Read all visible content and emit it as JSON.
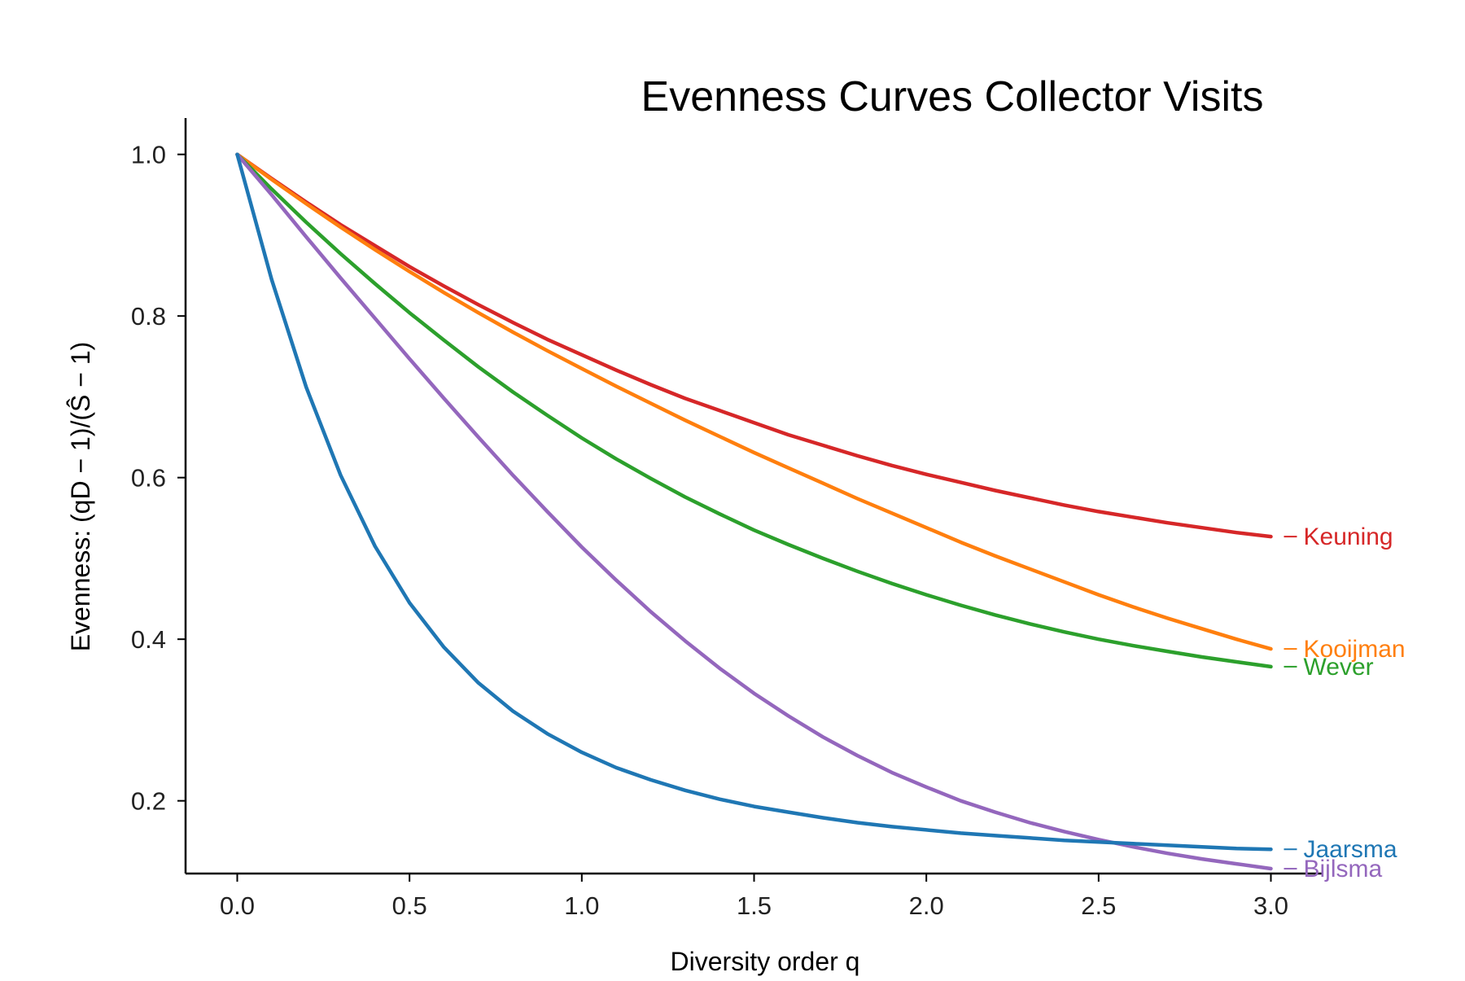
{
  "chart_data": {
    "type": "line",
    "title": "Evenness Curves Collector Visits",
    "xlabel": "Diversity order q",
    "ylabel": "Evenness: (qD − 1)/(Ŝ − 1)",
    "xlim": [
      -0.15,
      3.15
    ],
    "ylim": [
      0.11,
      1.045
    ],
    "x_ticks": [
      0.0,
      0.5,
      1.0,
      1.5,
      2.0,
      2.5,
      3.0
    ],
    "x_tick_labels": [
      "0.0",
      "0.5",
      "1.0",
      "1.5",
      "2.0",
      "2.5",
      "3.0"
    ],
    "y_ticks": [
      0.2,
      0.4,
      0.6,
      0.8,
      1.0
    ],
    "y_tick_labels": [
      "0.2",
      "0.4",
      "0.6",
      "0.8",
      "1.0"
    ],
    "grid": false,
    "legend": "inline labels at right end of each line",
    "x": [
      0.0,
      0.1,
      0.2,
      0.3,
      0.4,
      0.5,
      0.6,
      0.7,
      0.8,
      0.9,
      1.0,
      1.1,
      1.2,
      1.3,
      1.4,
      1.5,
      1.6,
      1.7,
      1.8,
      1.9,
      2.0,
      2.1,
      2.2,
      2.3,
      2.4,
      2.5,
      2.6,
      2.7,
      2.8,
      2.9,
      3.0
    ],
    "series": [
      {
        "name": "Keuning",
        "color": "#d62728",
        "values": [
          1.0,
          0.97,
          0.941,
          0.913,
          0.887,
          0.861,
          0.837,
          0.814,
          0.792,
          0.771,
          0.752,
          0.733,
          0.715,
          0.698,
          0.683,
          0.668,
          0.653,
          0.64,
          0.627,
          0.615,
          0.604,
          0.594,
          0.584,
          0.575,
          0.566,
          0.558,
          0.551,
          0.544,
          0.538,
          0.532,
          0.527
        ]
      },
      {
        "name": "Kooijman",
        "color": "#ff7f0e",
        "values": [
          1.0,
          0.969,
          0.939,
          0.91,
          0.882,
          0.855,
          0.829,
          0.804,
          0.78,
          0.757,
          0.735,
          0.713,
          0.692,
          0.671,
          0.651,
          0.631,
          0.612,
          0.593,
          0.574,
          0.556,
          0.538,
          0.52,
          0.503,
          0.487,
          0.471,
          0.455,
          0.44,
          0.426,
          0.413,
          0.4,
          0.388
        ]
      },
      {
        "name": "Wever",
        "color": "#2ca02c",
        "values": [
          1.0,
          0.957,
          0.916,
          0.877,
          0.84,
          0.804,
          0.77,
          0.737,
          0.706,
          0.677,
          0.649,
          0.623,
          0.599,
          0.576,
          0.555,
          0.535,
          0.517,
          0.5,
          0.484,
          0.469,
          0.455,
          0.442,
          0.43,
          0.419,
          0.409,
          0.4,
          0.392,
          0.385,
          0.378,
          0.372,
          0.366
        ]
      },
      {
        "name": "Bijlsma",
        "color": "#9467bd",
        "values": [
          1.0,
          0.95,
          0.898,
          0.847,
          0.797,
          0.747,
          0.698,
          0.65,
          0.603,
          0.558,
          0.514,
          0.473,
          0.434,
          0.398,
          0.364,
          0.333,
          0.305,
          0.279,
          0.256,
          0.235,
          0.217,
          0.2,
          0.186,
          0.173,
          0.162,
          0.152,
          0.143,
          0.135,
          0.128,
          0.122,
          0.116
        ]
      },
      {
        "name": "Jaarsma",
        "color": "#1f77b4",
        "values": [
          1.0,
          0.845,
          0.712,
          0.603,
          0.515,
          0.445,
          0.39,
          0.346,
          0.311,
          0.283,
          0.26,
          0.241,
          0.226,
          0.213,
          0.202,
          0.193,
          0.186,
          0.179,
          0.173,
          0.168,
          0.164,
          0.16,
          0.157,
          0.154,
          0.151,
          0.149,
          0.147,
          0.145,
          0.143,
          0.141,
          0.14
        ]
      }
    ]
  }
}
